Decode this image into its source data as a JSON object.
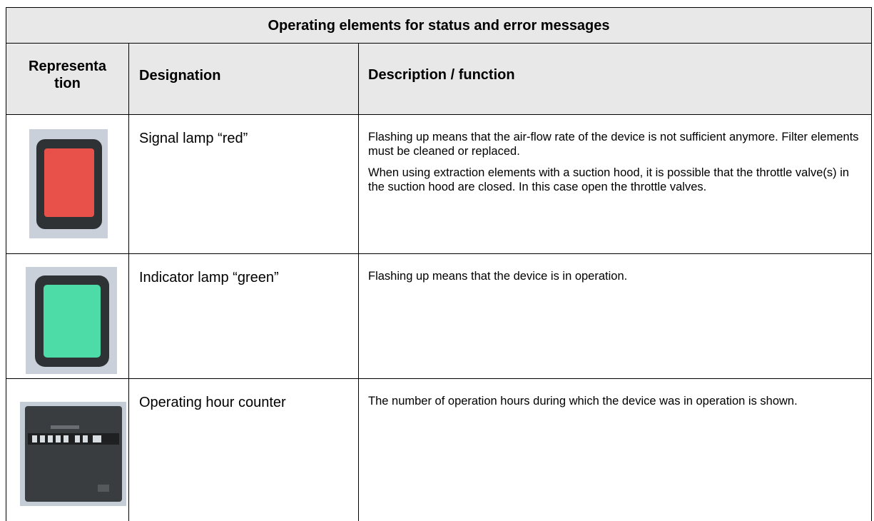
{
  "header": {
    "title": "Operating elements for status and error messages"
  },
  "table": {
    "columns": [
      "Representation",
      "Designation",
      "Description / function"
    ],
    "rows": [
      {
        "designation": "Signal lamp “red”",
        "description": [
          "Flashing up means that the air-flow rate of the device is not sufficient anymore. Filter elements must be cleaned or replaced.",
          "When using extraction elements with a suction hood, it is possible that the throttle valve(s) in the suction hood are closed. In this case open the throttle valves."
        ]
      },
      {
        "designation": "Indicator lamp “green”",
        "description": [
          "Flashing up means that the device is in operation."
        ]
      },
      {
        "designation": "Operating hour counter",
        "description": [
          "The number of operation hours during which the device was in operation is shown."
        ]
      }
    ]
  }
}
